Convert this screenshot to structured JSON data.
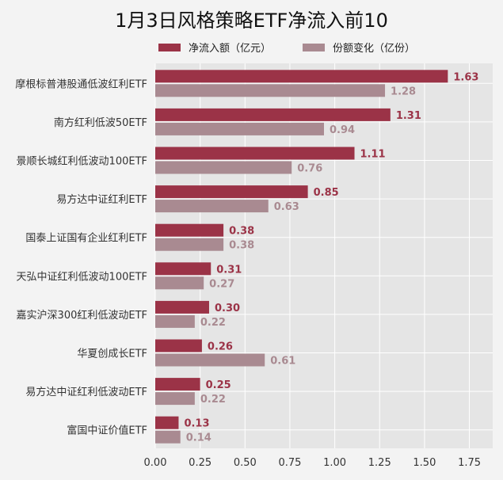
{
  "title": "1月3日风格策略ETF净流入前10",
  "legend": {
    "net_inflow": "净流入额（亿元）",
    "share_change": "份额变化（亿份）"
  },
  "colors": {
    "net_inflow": "#9b3347",
    "share_change": "#a98a91",
    "grid": "#ffffff",
    "plot_bg": "#e5e5e5"
  },
  "chart_data": {
    "type": "bar",
    "orientation": "horizontal",
    "title": "1月3日风格策略ETF净流入前10",
    "categories": [
      "摩根标普港股通低波红利ETF",
      "南方红利低波50ETF",
      "景顺长城红利低波动100ETF",
      "易方达中证红利ETF",
      "国泰上证国有企业红利ETF",
      "天弘中证红利低波动100ETF",
      "嘉实沪深300红利低波动ETF",
      "华夏创成长ETF",
      "易方达中证红利低波动ETF",
      "富国中证价值ETF"
    ],
    "series": [
      {
        "name": "净流入额（亿元）",
        "values": [
          1.63,
          1.31,
          1.11,
          0.85,
          0.38,
          0.31,
          0.3,
          0.26,
          0.25,
          0.13
        ]
      },
      {
        "name": "份额变化（亿份）",
        "values": [
          1.28,
          0.94,
          0.76,
          0.63,
          0.38,
          0.27,
          0.22,
          0.61,
          0.22,
          0.14
        ]
      }
    ],
    "value_labels": [
      [
        "1.63",
        "1.31",
        "1.11",
        "0.85",
        "0.38",
        "0.31",
        "0.30",
        "0.26",
        "0.25",
        "0.13"
      ],
      [
        "1.28",
        "0.94",
        "0.76",
        "0.63",
        "0.38",
        "0.27",
        "0.22",
        "0.61",
        "0.22",
        "0.14"
      ]
    ],
    "xlim": [
      0,
      1.88
    ],
    "xticks": [
      0,
      0.25,
      0.5,
      0.75,
      1.0,
      1.25,
      1.5,
      1.75
    ],
    "xtick_labels": [
      "0.00",
      "0.25",
      "0.50",
      "0.75",
      "1.00",
      "1.25",
      "1.50",
      "1.75"
    ],
    "grid": true,
    "legend_position": "top"
  }
}
